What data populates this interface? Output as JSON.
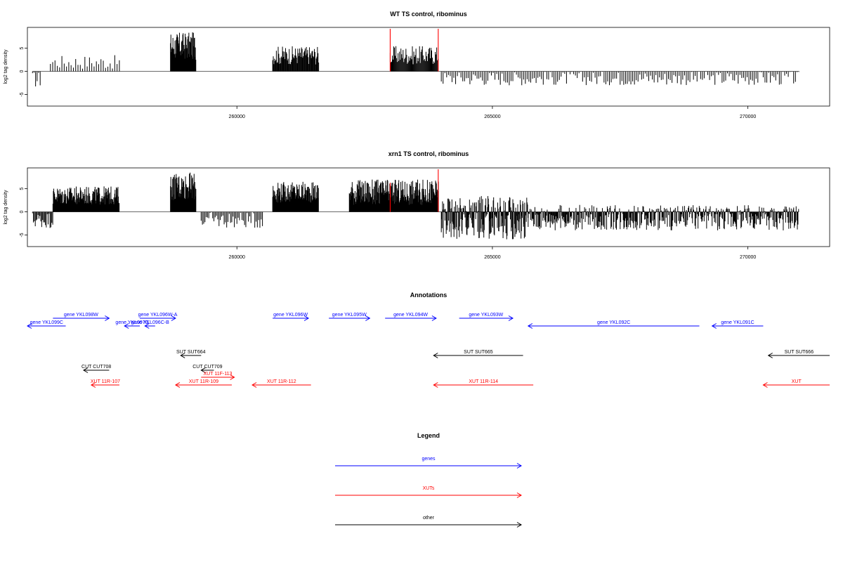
{
  "chart_data": [
    {
      "type": "bar",
      "title": "WT TS control, ribominus",
      "ylabel": "log2 tag density",
      "xlim": [
        255900,
        271600
      ],
      "ylim": [
        -7.5,
        9.5
      ],
      "xticks": [
        260000,
        265000,
        270000
      ],
      "yticks": [
        -5,
        0,
        5
      ],
      "xtick_labels": [
        "260000",
        "265000",
        "270000"
      ],
      "ytick_labels": [
        "-5",
        "0",
        "5"
      ],
      "colors": {
        "bars": "#000000",
        "highlight": "#ff0000"
      },
      "highlights": [
        {
          "x": 263000,
          "value": 9.2
        },
        {
          "x": 263940,
          "value": 9.2
        }
      ],
      "regions": [
        {
          "start": 256000,
          "end": 256150,
          "min": -3.5,
          "max": 0,
          "step": 30
        },
        {
          "start": 256350,
          "end": 257700,
          "min": 0.5,
          "max": 3.5,
          "step": 45
        },
        {
          "start": 258700,
          "end": 259200,
          "min": 2.5,
          "max": 8.5,
          "step": 8
        },
        {
          "start": 260700,
          "end": 261600,
          "min": 1.5,
          "max": 5.5,
          "step": 12
        },
        {
          "start": 263000,
          "end": 263950,
          "min": 1.5,
          "max": 5.5,
          "step": 14
        },
        {
          "start": 264000,
          "end": 271000,
          "min": -3,
          "max": 0,
          "step": 35
        }
      ]
    },
    {
      "type": "bar",
      "title": "xrn1 TS control, ribominus",
      "ylabel": "log2 tag density",
      "xlim": [
        255900,
        271600
      ],
      "ylim": [
        -7.5,
        9.5
      ],
      "xticks": [
        260000,
        265000,
        270000
      ],
      "yticks": [
        -5,
        0,
        5
      ],
      "xtick_labels": [
        "260000",
        "265000",
        "270000"
      ],
      "ytick_labels": [
        "-5",
        "0",
        "5"
      ],
      "colors": {
        "bars": "#000000",
        "highlight": "#ff0000"
      },
      "highlights": [
        {
          "x": 263000,
          "value": 6.3
        },
        {
          "x": 263940,
          "value": 9.2
        }
      ],
      "regions": [
        {
          "start": 256000,
          "end": 256400,
          "min": -3.5,
          "max": 0,
          "step": 18
        },
        {
          "start": 256400,
          "end": 257700,
          "min": 1.5,
          "max": 5.5,
          "step": 8
        },
        {
          "start": 258700,
          "end": 259200,
          "min": 2.5,
          "max": 8.5,
          "step": 7
        },
        {
          "start": 259300,
          "end": 260500,
          "min": -3.5,
          "max": 0,
          "step": 25
        },
        {
          "start": 260700,
          "end": 261600,
          "min": 2,
          "max": 6.5,
          "step": 8
        },
        {
          "start": 262200,
          "end": 263950,
          "min": 1.5,
          "max": 7,
          "step": 8
        },
        {
          "start": 264000,
          "end": 265700,
          "min": -6,
          "max": 3.5,
          "step": 8
        },
        {
          "start": 265700,
          "end": 271000,
          "min": -4,
          "max": 1.5,
          "step": 12
        }
      ]
    }
  ],
  "annotations": {
    "title": "Annotations",
    "colors": {
      "gene": "#0000ff",
      "XUT": "#ff0000",
      "other": "#000000"
    },
    "items": [
      {
        "label": "gene YKL099C",
        "type": "gene",
        "start": 255900,
        "end": 256650,
        "strand": "-",
        "row": 3
      },
      {
        "label": "gene YKL098W",
        "type": "gene",
        "start": 256400,
        "end": 257500,
        "strand": "+",
        "row": 2
      },
      {
        "label": "gene YKL096W-A",
        "type": "gene",
        "start": 258100,
        "end": 258800,
        "strand": "+",
        "row": 2
      },
      {
        "label": "gene YKL097C",
        "type": "gene",
        "start": 257800,
        "end": 258100,
        "strand": "-",
        "row": 3
      },
      {
        "label": "gene YKL096C-B",
        "type": "gene",
        "start": 258200,
        "end": 258400,
        "strand": "-",
        "row": 3
      },
      {
        "label": "gene YKL096W",
        "type": "gene",
        "start": 260700,
        "end": 261400,
        "strand": "+",
        "row": 2
      },
      {
        "label": "gene YKL095W",
        "type": "gene",
        "start": 261800,
        "end": 262600,
        "strand": "+",
        "row": 2
      },
      {
        "label": "gene YKL094W",
        "type": "gene",
        "start": 262900,
        "end": 263900,
        "strand": "+",
        "row": 2
      },
      {
        "label": "gene YKL093W",
        "type": "gene",
        "start": 264350,
        "end": 265400,
        "strand": "+",
        "row": 2
      },
      {
        "label": "gene YKL092C",
        "type": "gene",
        "start": 265700,
        "end": 269050,
        "strand": "-",
        "row": 3
      },
      {
        "label": "gene YKL091C",
        "type": "gene",
        "start": 269300,
        "end": 270300,
        "strand": "-",
        "row": 3
      },
      {
        "label": "SUT SUT664",
        "type": "other",
        "start": 258900,
        "end": 259300,
        "strand": "-",
        "row": 5
      },
      {
        "label": "SUT SUT665",
        "type": "other",
        "start": 263850,
        "end": 265600,
        "strand": "-",
        "row": 5
      },
      {
        "label": "SUT SUT666",
        "type": "other",
        "start": 270400,
        "end": 271600,
        "strand": "-",
        "row": 5
      },
      {
        "label": "CUT CUT708",
        "type": "other",
        "start": 257000,
        "end": 257500,
        "strand": "-",
        "row": 6
      },
      {
        "label": "CUT CUT709",
        "type": "other",
        "start": 259300,
        "end": 259550,
        "strand": "-",
        "row": 6
      },
      {
        "label": "XUT 11F-113",
        "type": "XUT",
        "start": 259300,
        "end": 259950,
        "strand": "+",
        "row": 7
      },
      {
        "label": "XUT 11R-107",
        "type": "XUT",
        "start": 257150,
        "end": 257700,
        "strand": "-",
        "row": 8
      },
      {
        "label": "XUT 11R-109",
        "type": "XUT",
        "start": 258800,
        "end": 259900,
        "strand": "-",
        "row": 8
      },
      {
        "label": "XUT 11R-112",
        "type": "XUT",
        "start": 260300,
        "end": 261450,
        "strand": "-",
        "row": 8
      },
      {
        "label": "XUT 11R-114",
        "type": "XUT",
        "start": 263850,
        "end": 265800,
        "strand": "-",
        "row": 8
      },
      {
        "label": "XUT",
        "type": "XUT",
        "start": 270300,
        "end": 271600,
        "strand": "-",
        "row": 8
      }
    ]
  },
  "legend": {
    "title": "Legend",
    "items": [
      {
        "label": "genes",
        "type": "gene"
      },
      {
        "label": "XUTs",
        "type": "XUT"
      },
      {
        "label": "other",
        "type": "other"
      }
    ]
  }
}
